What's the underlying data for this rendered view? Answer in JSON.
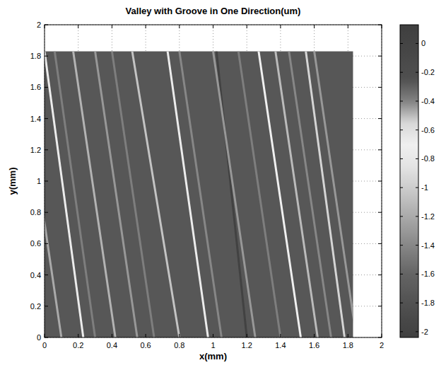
{
  "chart_data": {
    "type": "heatmap",
    "title": "Valley with Groove in One Direction(um)",
    "x_label": "x(mm)",
    "y_label": "y(mm)",
    "xlim": [
      0,
      2
    ],
    "ylim": [
      0,
      2
    ],
    "xticks": [
      0,
      0.2,
      0.4,
      0.6,
      0.8,
      1,
      1.2,
      1.4,
      1.6,
      1.8,
      2
    ],
    "yticks": [
      0,
      0.2,
      0.4,
      0.6,
      0.8,
      1,
      1.2,
      1.4,
      1.6,
      1.8,
      2
    ],
    "grid": true,
    "surface": {
      "x": [
        0,
        1.83
      ],
      "y": [
        0,
        1.83
      ],
      "value": -1.75
    },
    "grooves": [
      {
        "x_bottom": 0.1,
        "x_top": -0.15,
        "value": -1.2
      },
      {
        "x_bottom": 0.23,
        "x_top": 0.0,
        "value": -0.75
      },
      {
        "x_bottom": 0.3,
        "x_top": 0.06,
        "value": -1.45
      },
      {
        "x_bottom": 0.42,
        "x_top": 0.17,
        "value": -1.15
      },
      {
        "x_bottom": 0.55,
        "x_top": 0.3,
        "value": -1.3
      },
      {
        "x_bottom": 0.65,
        "x_top": 0.4,
        "value": -1.45
      },
      {
        "x_bottom": 0.8,
        "x_top": 0.52,
        "value": -1.05
      },
      {
        "x_bottom": 0.97,
        "x_top": 0.73,
        "value": -0.75
      },
      {
        "x_bottom": 1.05,
        "x_top": 0.8,
        "value": -1.4
      },
      {
        "x_bottom": 1.2,
        "x_top": 1.02,
        "value": -2.0
      },
      {
        "x_bottom": 1.25,
        "x_top": 1.0,
        "value": -1.3
      },
      {
        "x_bottom": 1.4,
        "x_top": 1.15,
        "value": -1.45
      },
      {
        "x_bottom": 1.52,
        "x_top": 1.27,
        "value": -0.7
      },
      {
        "x_bottom": 1.62,
        "x_top": 1.37,
        "value": -1.1
      },
      {
        "x_bottom": 1.7,
        "x_top": 1.45,
        "value": -1.4
      },
      {
        "x_bottom": 1.78,
        "x_top": 1.55,
        "value": -0.95
      },
      {
        "x_bottom": 1.85,
        "x_top": 1.6,
        "value": -1.3
      }
    ],
    "colorbar": {
      "range": [
        -2.04,
        0.13
      ],
      "ticks": [
        0,
        -0.2,
        -0.4,
        -0.6,
        -0.8,
        -1,
        -1.2,
        -1.4,
        -1.6,
        -1.8,
        -2
      ]
    }
  }
}
